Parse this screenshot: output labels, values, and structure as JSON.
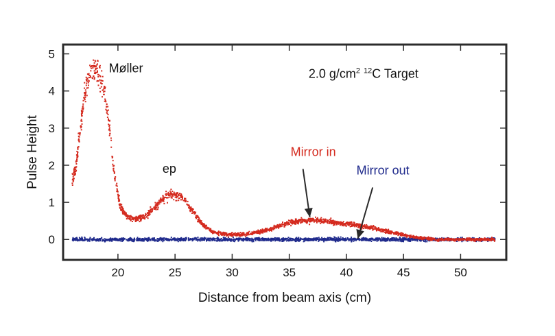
{
  "chart_data": {
    "type": "scatter",
    "title": "",
    "xlabel": "Distance from beam axis (cm)",
    "ylabel": "Pulse Height",
    "xlim": [
      15.2,
      54.0
    ],
    "ylim": [
      -0.55,
      5.25
    ],
    "x_ticks": [
      20,
      25,
      30,
      35,
      40,
      45,
      50
    ],
    "y_ticks": [
      0,
      1,
      2,
      3,
      4,
      5
    ],
    "grid": false,
    "series": [
      {
        "name": "Mirror in",
        "color": "#d42a1e",
        "marker": "dots",
        "x_range": [
          16.0,
          53.0
        ],
        "points": [
          [
            16.0,
            1.6
          ],
          [
            16.3,
            1.9
          ],
          [
            16.7,
            3.0
          ],
          [
            17.2,
            4.1
          ],
          [
            17.7,
            4.6
          ],
          [
            18.2,
            4.5
          ],
          [
            18.7,
            4.2
          ],
          [
            19.2,
            3.2
          ],
          [
            19.7,
            1.7
          ],
          [
            20.2,
            0.9
          ],
          [
            20.8,
            0.62
          ],
          [
            21.5,
            0.55
          ],
          [
            22.3,
            0.6
          ],
          [
            23.0,
            0.8
          ],
          [
            23.8,
            1.08
          ],
          [
            24.6,
            1.22
          ],
          [
            25.3,
            1.2
          ],
          [
            26.0,
            1.0
          ],
          [
            26.7,
            0.7
          ],
          [
            27.4,
            0.4
          ],
          [
            28.2,
            0.22
          ],
          [
            29.0,
            0.15
          ],
          [
            30.0,
            0.13
          ],
          [
            31.0,
            0.14
          ],
          [
            32.0,
            0.18
          ],
          [
            33.0,
            0.25
          ],
          [
            34.0,
            0.35
          ],
          [
            35.0,
            0.45
          ],
          [
            36.0,
            0.5
          ],
          [
            37.0,
            0.52
          ],
          [
            38.0,
            0.5
          ],
          [
            39.0,
            0.45
          ],
          [
            40.0,
            0.42
          ],
          [
            41.0,
            0.38
          ],
          [
            42.0,
            0.32
          ],
          [
            43.0,
            0.26
          ],
          [
            44.0,
            0.18
          ],
          [
            45.0,
            0.12
          ],
          [
            46.0,
            0.06
          ],
          [
            47.0,
            0.02
          ],
          [
            48.0,
            0.0
          ],
          [
            50.0,
            0.0
          ],
          [
            53.0,
            0.0
          ]
        ]
      },
      {
        "name": "Mirror out",
        "color": "#1f2a8c",
        "marker": "dots",
        "x_range": [
          16.0,
          53.0
        ],
        "points": [
          [
            16.0,
            0.0
          ],
          [
            53.0,
            0.0
          ]
        ]
      }
    ],
    "annotations": [
      {
        "text": "Møller",
        "at": [
          20.7,
          4.5
        ]
      },
      {
        "text": "ep",
        "at": [
          24.5,
          1.8
        ]
      },
      {
        "text": "Mirror in",
        "at": [
          37.1,
          2.25
        ],
        "arrow_to": [
          36.8,
          0.6
        ]
      },
      {
        "text": "Mirror out",
        "at": [
          43.2,
          1.75
        ],
        "arrow_to": [
          41.0,
          0.02
        ]
      },
      {
        "text_main": "2.0 g/cm",
        "text_sup1": "2",
        "text_iso": "12",
        "text_tail": "C Target",
        "at": [
          41.5,
          4.35
        ]
      }
    ]
  }
}
